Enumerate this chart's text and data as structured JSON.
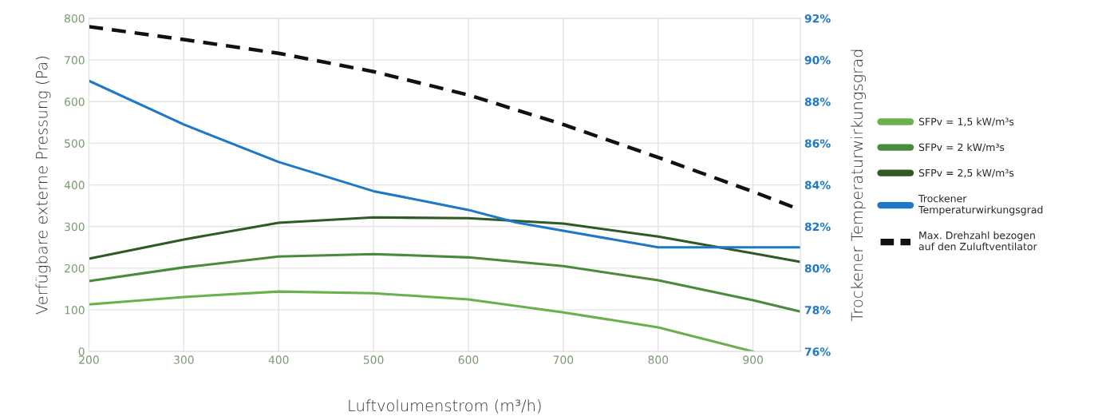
{
  "chart_data": {
    "type": "line",
    "xlabel": "Luftvolumenstrom (m³/h)",
    "ylabel": "Verfügbare externe Pressung (Pa)",
    "y2label": "Trockener Temperaturwirkungsgrad",
    "x": [
      200,
      300,
      400,
      500,
      600,
      700,
      800,
      900,
      950
    ],
    "series": [
      {
        "name": "SFPv = 1,5 kW/m³s",
        "color": "#6ab04c",
        "x": [
          200,
          300,
          400,
          500,
          600,
          700,
          800,
          900
        ],
        "values": [
          113,
          131,
          144,
          140,
          125,
          94,
          58,
          0
        ]
      },
      {
        "name": "SFPv = 2 kW/m³s",
        "color": "#4a8a3c",
        "values": [
          169,
          202,
          228,
          234,
          226,
          205,
          171,
          123,
          96
        ]
      },
      {
        "name": "SFPv = 2,5 kW/m³s",
        "color": "#2f5a25",
        "values": [
          223,
          269,
          309,
          322,
          320,
          307,
          276,
          236,
          215
        ]
      },
      {
        "name": "Trockener Temperaturwirkungsgrad",
        "color": "#1e78c8",
        "axis": "y2",
        "x": [
          200,
          300,
          400,
          500,
          600,
          650,
          700,
          800,
          850,
          950
        ],
        "values": [
          89.0,
          86.9,
          85.1,
          83.7,
          82.8,
          82.2,
          81.8,
          81.0,
          81.0,
          81.0
        ]
      },
      {
        "name": "Max. Drehzahl bezogen auf den Zuluftventilator",
        "color": "#111111",
        "line_style": "dashed",
        "values": [
          780,
          749,
          716,
          672,
          616,
          545,
          466,
          384,
          340
        ]
      }
    ],
    "xlim": [
      200,
      950
    ],
    "xticks": [
      200,
      300,
      400,
      500,
      600,
      700,
      800,
      900
    ],
    "ylim": [
      0,
      800
    ],
    "yticks": [
      0,
      100,
      200,
      300,
      400,
      500,
      600,
      700,
      800
    ],
    "y2lim": [
      76,
      92
    ],
    "y2ticks": [
      {
        "value": 76,
        "label": "76%"
      },
      {
        "value": 78,
        "label": "78%"
      },
      {
        "value": 80,
        "label": "80%"
      },
      {
        "value": 82,
        "label": "82%"
      },
      {
        "value": 84,
        "label": "84%"
      },
      {
        "value": 86,
        "label": "86%"
      },
      {
        "value": 88,
        "label": "88%"
      },
      {
        "value": 90,
        "label": "90%"
      },
      {
        "value": 92,
        "label": "92%"
      }
    ],
    "grid": true,
    "legend": "right",
    "marker": "none",
    "line_style": "solid"
  }
}
